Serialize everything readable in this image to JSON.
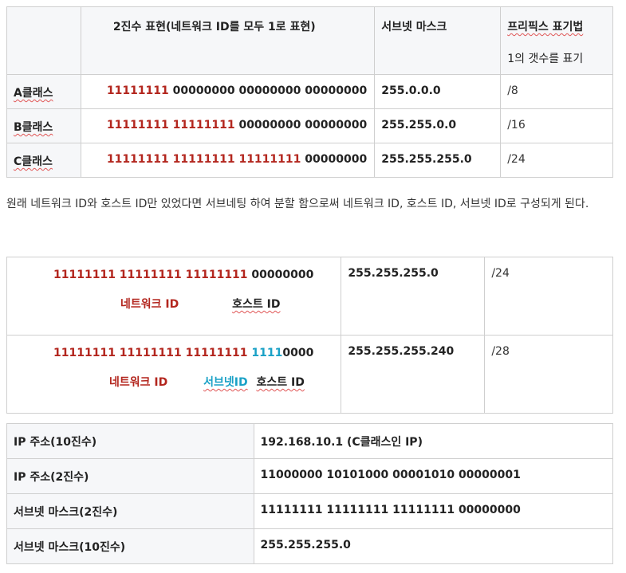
{
  "table1": {
    "headers": [
      "",
      "2진수 표현(네트워크 ID를 모두 1로 표현)",
      "서브넷 마스크",
      "프리픽스 표기법"
    ],
    "header_sub": "1의 갯수를 표기",
    "rows": [
      {
        "cls": "A클래스",
        "red": "11111111",
        "black": " 00000000 00000000 00000000",
        "mask": "255.0.0.0",
        "prefix": "/8"
      },
      {
        "cls": "B클래스",
        "red": "11111111 11111111",
        "black": " 00000000 00000000",
        "mask": "255.255.0.0",
        "prefix": "/16"
      },
      {
        "cls": "C클래스",
        "red": "11111111 11111111 11111111",
        "black": " 00000000",
        "mask": "255.255.255.0",
        "prefix": "/24"
      }
    ]
  },
  "paragraph": "원래 네트워크 ID와 호스트 ID만 있었다면 서브네팅 하여 분할 함으로써 네트워크 ID, 호스트 ID, 서브넷 ID로 구성되게 된다.",
  "table2": {
    "rows": [
      {
        "red": "11111111 11111111 11111111",
        "blue": "",
        "black": " 00000000",
        "net": "네트워크 ID",
        "sub": "",
        "host": "호스트 ID",
        "mask": "255.255.255.0",
        "prefix": "/24"
      },
      {
        "red": "11111111 11111111 11111111",
        "blue": " 1111",
        "black": "0000",
        "net": "네트워크 ID",
        "sub": "서브넷ID",
        "host": "호스트 ID",
        "mask": "255.255.255.240",
        "prefix": "/28"
      }
    ]
  },
  "table3": {
    "rows": [
      {
        "label": "IP 주소(10진수)",
        "value": "192.168.10.1 (C클래스인 IP)"
      },
      {
        "label": "IP 주소(2진수)",
        "value": "11000000 10101000 00001010 00000001"
      },
      {
        "label": "서브넷 마스크(2진수)",
        "value": "11111111 11111111 11111111 00000000"
      },
      {
        "label": "서브넷 마스크(10진수)",
        "value": "255.255.255.0"
      }
    ]
  },
  "colors": {
    "network": "#b3261e",
    "subnet": "#1aa1c6",
    "border": "#cfcfcf",
    "header_bg": "#f6f7f9"
  }
}
